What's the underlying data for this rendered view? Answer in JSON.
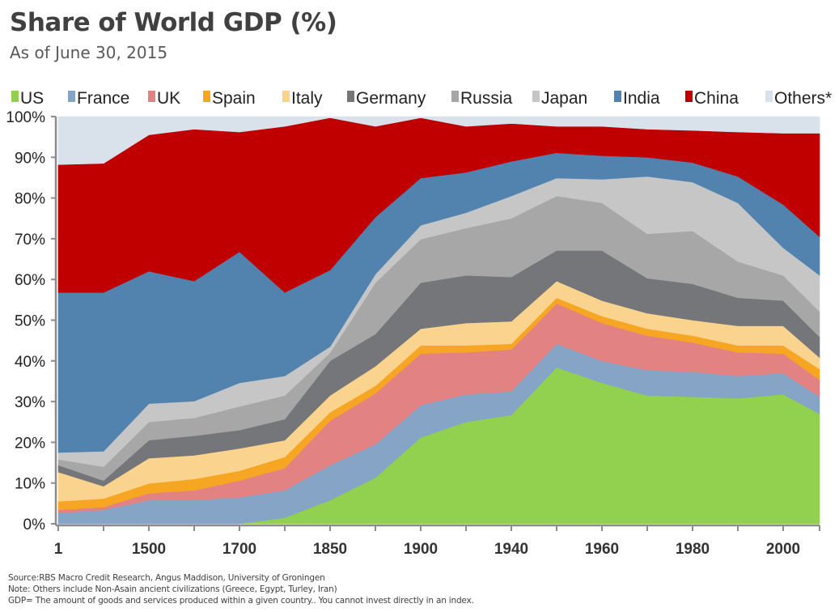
{
  "header": {
    "title": "Share of World GDP (%)",
    "subtitle": "As of June 30, 2015"
  },
  "footer": {
    "source": "Source:RBS Macro Credit Research, Angus Maddison, University of Groningen",
    "note": "Note: Others include Non-Asain ancient civilizations (Greece, Egypt, Turley, Iran)",
    "disclaimer": "GDP= The amount of goods and services produced within a given country.. You cannot invest directly in  an  index."
  },
  "chart_data": {
    "type": "area",
    "stacked": true,
    "title": "Share of World GDP (%)",
    "subtitle": "As of June 30, 2015",
    "xlabel": "",
    "ylabel": "",
    "x_tick_labels": [
      "1",
      null,
      "1500",
      null,
      "1700",
      null,
      "1850",
      null,
      "1900",
      null,
      "1940",
      null,
      "1960",
      null,
      "1980",
      null,
      "2000",
      null
    ],
    "ylim": [
      0,
      100
    ],
    "y_ticks": [
      "0%",
      "10%",
      "20%",
      "30%",
      "40%",
      "50%",
      "60%",
      "70%",
      "80%",
      "90%",
      "100%"
    ],
    "legend_position": "top",
    "grid": false,
    "series": [
      {
        "name": "US",
        "color": "#92d050",
        "values": [
          0,
          0,
          0,
          0,
          0,
          1.5,
          5.8,
          11.3,
          21.2,
          25.0,
          26.7,
          38.4,
          34.6,
          31.5,
          31.2,
          30.8,
          31.8,
          27.0
        ]
      },
      {
        "name": "France",
        "color": "#85a4c6",
        "values": [
          2.6,
          3.4,
          5.8,
          5.8,
          6.5,
          6.7,
          8.6,
          8.2,
          7.9,
          6.8,
          5.8,
          5.8,
          5.4,
          6.2,
          6.1,
          5.5,
          5.2,
          4.2
        ]
      },
      {
        "name": "UK",
        "color": "#e38283",
        "values": [
          0.8,
          0.7,
          1.7,
          2.4,
          4.1,
          5.5,
          10.9,
          12.5,
          12.7,
          10.3,
          10.3,
          9.9,
          9.3,
          8.5,
          7.2,
          5.8,
          4.8,
          4.1
        ]
      },
      {
        "name": "Spain",
        "color": "#f6a623",
        "values": [
          2.1,
          2.1,
          2.4,
          2.8,
          2.4,
          2.7,
          2.1,
          1.9,
          2.0,
          1.7,
          1.4,
          1.4,
          1.7,
          1.7,
          1.7,
          1.7,
          2.0,
          2.7
        ]
      },
      {
        "name": "Italy",
        "color": "#fad48f",
        "values": [
          7.2,
          3.0,
          6.2,
          5.8,
          5.5,
          4.1,
          4.1,
          4.8,
          4.1,
          5.5,
          5.5,
          4.1,
          3.8,
          3.8,
          3.8,
          4.8,
          4.8,
          2.8
        ]
      },
      {
        "name": "Germany",
        "color": "#747679",
        "values": [
          1.7,
          1.4,
          4.4,
          4.8,
          4.5,
          5.2,
          8.5,
          7.9,
          11.3,
          11.7,
          10.9,
          7.5,
          12.3,
          8.6,
          8.9,
          6.9,
          6.2,
          5.1
        ]
      },
      {
        "name": "Russia",
        "color": "#a7a7a7",
        "values": [
          1.4,
          3.4,
          4.5,
          4.4,
          5.8,
          5.8,
          2.0,
          12.6,
          10.7,
          11.6,
          14.4,
          13.4,
          11.7,
          10.9,
          13.0,
          8.9,
          6.2,
          6.2
        ]
      },
      {
        "name": "Japan",
        "color": "#c6c6c6",
        "values": [
          1.7,
          3.8,
          4.5,
          4.1,
          5.8,
          4.8,
          1.5,
          2.1,
          3.4,
          3.8,
          5.5,
          4.4,
          5.8,
          14.1,
          12.0,
          14.4,
          6.8,
          8.9
        ]
      },
      {
        "name": "India",
        "color": "#5183ae",
        "values": [
          39.3,
          39.0,
          32.5,
          29.5,
          32.2,
          20.5,
          18.8,
          14.0,
          11.6,
          9.9,
          8.5,
          6.2,
          5.8,
          4.7,
          4.8,
          6.5,
          10.6,
          9.5
        ]
      },
      {
        "name": "China",
        "color": "#c00000",
        "values": [
          31.4,
          31.7,
          33.5,
          37.3,
          29.4,
          40.8,
          37.4,
          22.3,
          14.8,
          11.3,
          9.3,
          6.5,
          7.2,
          6.9,
          7.9,
          10.9,
          17.5,
          25.4
        ]
      },
      {
        "name": "Others*",
        "color": "#d9e1eb",
        "values": [
          11.8,
          11.5,
          4.5,
          3.1,
          3.8,
          2.4,
          0.3,
          2.4,
          0.3,
          2.4,
          1.7,
          2.4,
          2.4,
          3.1,
          3.4,
          3.8,
          4.1,
          4.1
        ]
      }
    ]
  }
}
